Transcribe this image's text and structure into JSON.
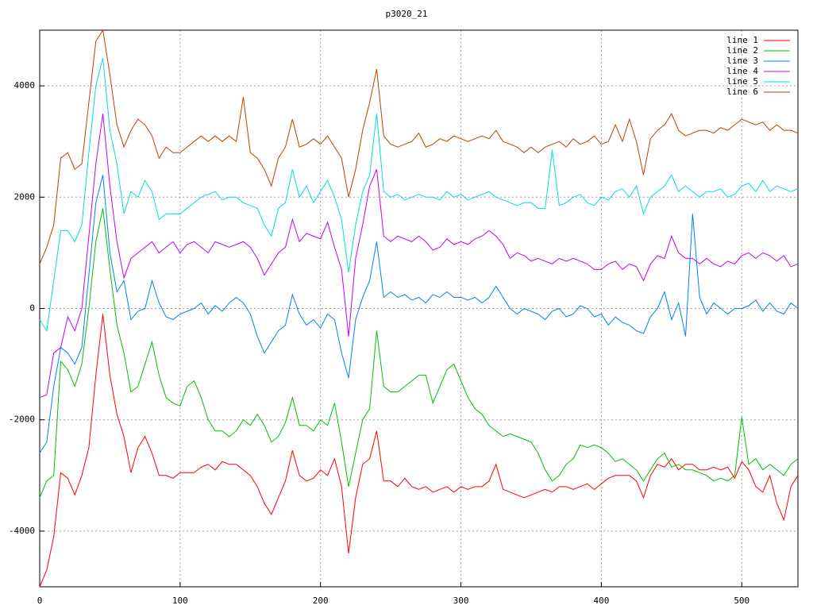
{
  "chart_data": {
    "type": "line",
    "title": "p3020_21",
    "xlim": [
      0,
      540
    ],
    "ylim": [
      -5000,
      5000
    ],
    "xticks": [
      0,
      100,
      200,
      300,
      400,
      500
    ],
    "yticks": [
      -4000,
      -2000,
      0,
      2000,
      4000
    ],
    "grid": true,
    "legend": "top-right",
    "x": [
      0,
      5,
      10,
      15,
      20,
      25,
      30,
      35,
      40,
      45,
      50,
      55,
      60,
      65,
      70,
      75,
      80,
      85,
      90,
      95,
      100,
      105,
      110,
      115,
      120,
      125,
      130,
      135,
      140,
      145,
      150,
      155,
      160,
      165,
      170,
      175,
      180,
      185,
      190,
      195,
      200,
      205,
      210,
      215,
      220,
      225,
      230,
      235,
      240,
      245,
      250,
      255,
      260,
      265,
      270,
      275,
      280,
      285,
      290,
      295,
      300,
      305,
      310,
      315,
      320,
      325,
      330,
      335,
      340,
      345,
      350,
      355,
      360,
      365,
      370,
      375,
      380,
      385,
      390,
      395,
      400,
      405,
      410,
      415,
      420,
      425,
      430,
      435,
      440,
      445,
      450,
      455,
      460,
      465,
      470,
      475,
      480,
      485,
      490,
      495,
      500,
      505,
      510,
      515,
      520,
      525,
      530,
      535,
      540
    ],
    "series": [
      {
        "name": "line 1",
        "color": "#ff0000",
        "values": [
          -5000,
          -4700,
          -4100,
          -2950,
          -3050,
          -3350,
          -3000,
          -2500,
          -1200,
          -100,
          -1200,
          -1900,
          -2300,
          -2950,
          -2500,
          -2300,
          -2600,
          -3000,
          -3000,
          -3050,
          -2950,
          -2950,
          -2950,
          -2850,
          -2800,
          -2900,
          -2750,
          -2800,
          -2800,
          -2900,
          -3000,
          -3200,
          -3500,
          -3700,
          -3400,
          -3100,
          -2550,
          -3000,
          -3100,
          -3050,
          -2900,
          -3000,
          -2700,
          -3200,
          -4400,
          -3400,
          -2800,
          -2700,
          -2200,
          -3100,
          -3100,
          -3200,
          -3050,
          -3200,
          -3250,
          -3200,
          -3300,
          -3250,
          -3200,
          -3300,
          -3200,
          -3250,
          -3200,
          -3200,
          -3100,
          -2800,
          -3250,
          -3300,
          -3350,
          -3400,
          -3350,
          -3300,
          -3250,
          -3300,
          -3200,
          -3200,
          -3250,
          -3200,
          -3150,
          -3250,
          -3150,
          -3050,
          -3000,
          -3000,
          -3000,
          -3100,
          -3400,
          -3000,
          -2800,
          -2850,
          -2700,
          -2900,
          -2800,
          -2800,
          -2900,
          -2900,
          -2850,
          -2900,
          -2850,
          -3050,
          -2750,
          -2900,
          -3200,
          -3300,
          -3000,
          -3500,
          -3800,
          -3200,
          -3000
        ]
      },
      {
        "name": "line 2",
        "color": "#00c000",
        "values": [
          -3400,
          -3100,
          -3000,
          -950,
          -1100,
          -1400,
          -1000,
          0,
          1200,
          1800,
          700,
          -300,
          -800,
          -1500,
          -1400,
          -1000,
          -600,
          -1200,
          -1600,
          -1700,
          -1750,
          -1400,
          -1300,
          -1600,
          -2000,
          -2200,
          -2200,
          -2300,
          -2200,
          -2000,
          -2100,
          -1900,
          -2100,
          -2400,
          -2300,
          -2050,
          -1600,
          -2100,
          -2100,
          -2200,
          -2000,
          -2100,
          -1700,
          -2400,
          -3200,
          -2600,
          -2000,
          -1800,
          -400,
          -1400,
          -1500,
          -1500,
          -1400,
          -1300,
          -1200,
          -1200,
          -1700,
          -1400,
          -1100,
          -1000,
          -1300,
          -1600,
          -1800,
          -1900,
          -2100,
          -2200,
          -2300,
          -2250,
          -2300,
          -2350,
          -2400,
          -2600,
          -2900,
          -3100,
          -3000,
          -2800,
          -2700,
          -2450,
          -2500,
          -2450,
          -2500,
          -2600,
          -2750,
          -2700,
          -2800,
          -2900,
          -3100,
          -2900,
          -2700,
          -2600,
          -2850,
          -2800,
          -2900,
          -2900,
          -2950,
          -3000,
          -3100,
          -3050,
          -3100,
          -3000,
          -1950,
          -2800,
          -2700,
          -2900,
          -2800,
          -2900,
          -3000,
          -2800,
          -2700
        ]
      },
      {
        "name": "line 3",
        "color": "#0080ff",
        "values": [
          -2600,
          -2400,
          -1400,
          -700,
          -800,
          -1000,
          -700,
          600,
          1900,
          2400,
          1000,
          300,
          500,
          -200,
          -50,
          0,
          500,
          100,
          -150,
          -200,
          -100,
          -50,
          0,
          100,
          -100,
          50,
          -50,
          100,
          200,
          100,
          -100,
          -500,
          -800,
          -600,
          -400,
          -300,
          250,
          -100,
          -300,
          -200,
          -350,
          -100,
          -200,
          -800,
          -1250,
          -200,
          200,
          500,
          1200,
          200,
          300,
          200,
          250,
          150,
          200,
          100,
          250,
          200,
          300,
          200,
          200,
          150,
          200,
          100,
          200,
          400,
          200,
          0,
          -100,
          0,
          -50,
          -100,
          -200,
          -50,
          0,
          -150,
          -100,
          50,
          0,
          -150,
          -100,
          -300,
          -150,
          -250,
          -300,
          -400,
          -450,
          -150,
          0,
          300,
          -200,
          100,
          -500,
          1700,
          200,
          -100,
          100,
          0,
          -100,
          0,
          0,
          50,
          150,
          -50,
          100,
          -50,
          -100,
          100,
          0
        ]
      },
      {
        "name": "line 4",
        "color": "#c000ff",
        "values": [
          -1600,
          -1550,
          -800,
          -700,
          -150,
          -400,
          0,
          1300,
          2600,
          3500,
          2200,
          1200,
          550,
          900,
          1000,
          1100,
          1200,
          1000,
          1100,
          1200,
          1000,
          1150,
          1200,
          1100,
          1000,
          1200,
          1150,
          1100,
          1150,
          1200,
          1100,
          900,
          600,
          800,
          1000,
          1100,
          1600,
          1200,
          1350,
          1300,
          1250,
          1550,
          1100,
          700,
          -500,
          900,
          1500,
          2200,
          2500,
          1300,
          1200,
          1300,
          1250,
          1200,
          1300,
          1200,
          1050,
          1100,
          1250,
          1150,
          1200,
          1150,
          1250,
          1300,
          1400,
          1300,
          1150,
          900,
          1000,
          950,
          850,
          900,
          850,
          800,
          900,
          850,
          900,
          850,
          800,
          700,
          700,
          800,
          850,
          700,
          800,
          750,
          500,
          800,
          950,
          900,
          1300,
          1000,
          900,
          900,
          800,
          900,
          800,
          750,
          850,
          800,
          950,
          1000,
          900,
          1000,
          950,
          850,
          950,
          750,
          800
        ]
      },
      {
        "name": "line 5",
        "color": "#00dddd",
        "values": [
          -200,
          -400,
          500,
          1400,
          1400,
          1200,
          1500,
          2800,
          4000,
          4500,
          3200,
          2600,
          1700,
          2100,
          2000,
          2300,
          2100,
          1600,
          1700,
          1700,
          1700,
          1800,
          1900,
          2000,
          2050,
          2100,
          1950,
          2000,
          2000,
          1900,
          1850,
          1800,
          1500,
          1300,
          1800,
          1900,
          2500,
          2000,
          2200,
          1900,
          2100,
          2300,
          2000,
          1600,
          650,
          1500,
          2100,
          2400,
          3500,
          2100,
          2000,
          2050,
          1950,
          2000,
          2050,
          2000,
          2000,
          1950,
          2100,
          2000,
          2050,
          1950,
          2000,
          2050,
          2100,
          2000,
          1950,
          1900,
          1850,
          1900,
          1900,
          1800,
          1800,
          2850,
          1850,
          1900,
          2000,
          2050,
          1900,
          1850,
          2000,
          1950,
          2100,
          2150,
          2000,
          2200,
          1700,
          2000,
          2100,
          2200,
          2400,
          2100,
          2200,
          2100,
          2000,
          2100,
          2100,
          2150,
          2000,
          2050,
          2200,
          2250,
          2100,
          2300,
          2100,
          2200,
          2150,
          2100,
          2150
        ]
      },
      {
        "name": "line 6",
        "color": "#c04000",
        "values": [
          800,
          1100,
          1500,
          2700,
          2800,
          2500,
          2600,
          3700,
          4800,
          5000,
          4200,
          3300,
          2900,
          3200,
          3400,
          3300,
          3100,
          2700,
          2900,
          2800,
          2800,
          2900,
          3000,
          3100,
          3000,
          3100,
          3000,
          3100,
          3000,
          3800,
          2800,
          2700,
          2500,
          2200,
          2700,
          2900,
          3400,
          2900,
          2950,
          3050,
          2950,
          3100,
          2900,
          2700,
          2000,
          2500,
          3200,
          3700,
          4300,
          3100,
          2950,
          2900,
          2950,
          3000,
          3150,
          2900,
          2950,
          3050,
          3000,
          3100,
          3050,
          3000,
          3050,
          3100,
          3050,
          3200,
          3000,
          2950,
          2900,
          2800,
          2900,
          2800,
          2900,
          2950,
          3000,
          2900,
          3050,
          2950,
          3000,
          3100,
          2950,
          3000,
          3300,
          3000,
          3400,
          3000,
          2400,
          3050,
          3200,
          3300,
          3500,
          3200,
          3100,
          3150,
          3200,
          3200,
          3150,
          3250,
          3200,
          3300,
          3400,
          3350,
          3300,
          3350,
          3200,
          3300,
          3200,
          3200,
          3150
        ]
      }
    ]
  }
}
